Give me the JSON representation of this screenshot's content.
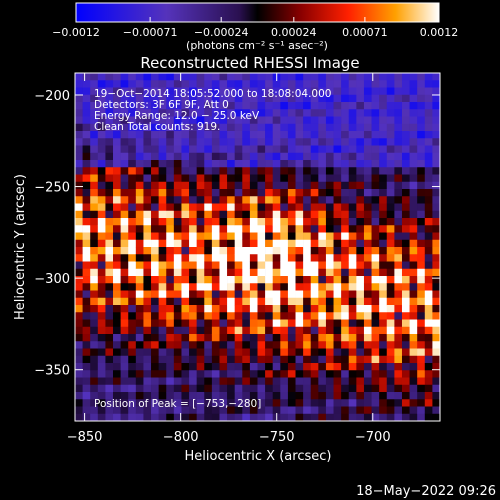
{
  "chart_data": {
    "type": "heatmap",
    "title": "Reconstructed RHESSI Image",
    "xlabel": "Heliocentric X (arcsec)",
    "ylabel": "Heliocentric Y (arcsec)",
    "xlim": [
      -855,
      -665
    ],
    "ylim": [
      -378,
      -188
    ],
    "x_ticks": [
      -850,
      -800,
      -750,
      -700
    ],
    "y_ticks": [
      -200,
      -250,
      -300,
      -350
    ],
    "x_tick_labels": [
      "−850",
      "−800",
      "−750",
      "−700"
    ],
    "y_tick_labels": [
      "−200",
      "−250",
      "−300",
      "−350"
    ],
    "colorbar": {
      "min": -0.0012,
      "max": 0.0012,
      "ticks": [
        -0.0012,
        -0.00071,
        -0.00024,
        0.00024,
        0.00071,
        0.0012
      ],
      "tick_labels": [
        "−0.0012",
        "−0.00071",
        "−0.00024",
        "0.00024",
        "0.00071",
        "0.0012"
      ],
      "units_label": "(photons cm⁻² s⁻¹ asec⁻²)"
    },
    "annotations": [
      "19−Oct−2014 18:05:52.000 to 18:08:04.000",
      "Detectors: 3F 6F 9F, Att 0",
      "Energy Range: 12.0 − 25.0 keV",
      "Clean    Total counts: 919.",
      "Position of Peak = [−753,−280]"
    ],
    "peak": {
      "x": -753,
      "y": -280
    }
  },
  "timestamp": "18−May−2022 09:26"
}
